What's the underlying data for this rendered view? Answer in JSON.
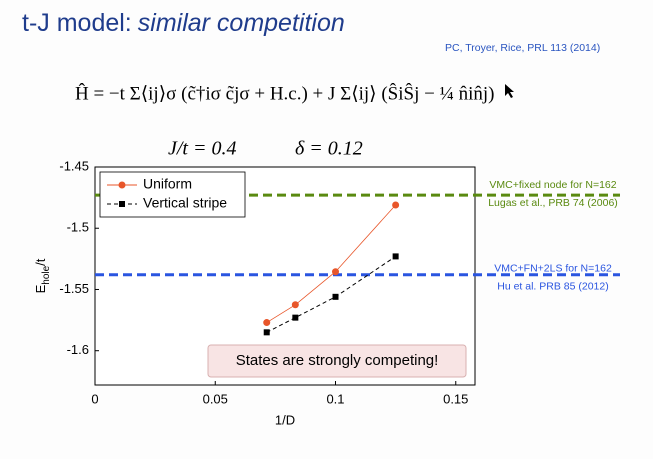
{
  "header": {
    "title": "t-J model:",
    "title_italic": "similar competition",
    "citation": "PC, Troyer, Rice, PRL 113 (2014)",
    "formula": "Ĥ = −t Σ⟨ij⟩σ (c̃†iσ c̃jσ + H.c.) + J Σ⟨ij⟩ (ŜiŜj − ¼ n̂in̂j)",
    "params": [
      "J/t = 0.4",
      "δ = 0.12"
    ]
  },
  "chart_data": {
    "type": "line",
    "x_label": "1/D",
    "y_label": {
      "main": "E",
      "sub": "hole",
      "tail": "/t"
    },
    "x": [
      0.0714,
      0.0833,
      0.1,
      0.125
    ],
    "series": [
      {
        "name": "Uniform",
        "color": "#e8562a",
        "marker": "circle",
        "dash": false,
        "values": [
          -1.577,
          -1.5625,
          -1.5355,
          -1.481
        ]
      },
      {
        "name": "Vertical stripe",
        "color": "#000000",
        "marker": "square",
        "dash": true,
        "values": [
          -1.585,
          -1.573,
          -1.556,
          -1.523
        ]
      }
    ],
    "xlim": [
      0,
      0.158
    ],
    "ylim": [
      -1.628,
      -1.45
    ],
    "xticks": [
      0,
      0.05,
      0.1,
      0.15
    ],
    "yticks": [
      -1.45,
      -1.5,
      -1.55,
      -1.6
    ],
    "legend": "upper left",
    "reference_lines": [
      {
        "value": -1.473,
        "color": "#5a8a10",
        "labels": [
          "VMC+fixed node for N=162",
          "Lugas et al., PRB 74 (2006)"
        ]
      },
      {
        "value": -1.538,
        "color": "#2a55e0",
        "labels": [
          "VMC+FN+2LS for N=162",
          "Hu et al. PRB 85 (2012)"
        ]
      }
    ],
    "annotation": "States are strongly competing!"
  }
}
